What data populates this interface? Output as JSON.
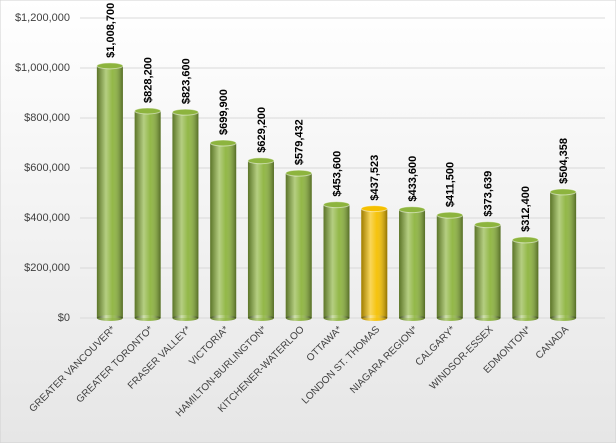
{
  "chart_data": {
    "type": "bar",
    "categories": [
      "GREATER VANCOUVER*",
      "GREATER TORONTO*",
      "FRASER VALLEY*",
      "VICTORIA*",
      "HAMILTON-BURLINGTON*",
      "KITCHENER-WATERLOO",
      "OTTAWA*",
      "LONDON ST. THOMAS",
      "NIAGARA REGION*",
      "CALGARY*",
      "WINDSOR-ESSEX",
      "EDMONTON*",
      "CANADA"
    ],
    "values": [
      1008700,
      828200,
      823600,
      699900,
      629200,
      579432,
      453600,
      437523,
      433600,
      411500,
      373639,
      312400,
      504358
    ],
    "value_labels": [
      "$1,008,700",
      "$828,200",
      "$823,600",
      "$699,900",
      "$629,200",
      "$579,432",
      "$453,600",
      "$437,523",
      "$433,600",
      "$411,500",
      "$373,639",
      "$312,400",
      "$504,358"
    ],
    "colors": [
      "#8db43e",
      "#8db43e",
      "#8db43e",
      "#8db43e",
      "#8db43e",
      "#8db43e",
      "#8db43e",
      "#f5c000",
      "#8db43e",
      "#8db43e",
      "#8db43e",
      "#8db43e",
      "#8db43e"
    ],
    "ylim": [
      0,
      1200000
    ],
    "yticks": [
      {
        "value": 0,
        "label": "$0"
      },
      {
        "value": 200000,
        "label": "$200,000"
      },
      {
        "value": 400000,
        "label": "$400,000"
      },
      {
        "value": 600000,
        "label": "$600,000"
      },
      {
        "value": 800000,
        "label": "$800,000"
      },
      {
        "value": 1000000,
        "label": "$1,000,000"
      },
      {
        "value": 1200000,
        "label": "$1,200,000"
      }
    ],
    "grid": true
  }
}
